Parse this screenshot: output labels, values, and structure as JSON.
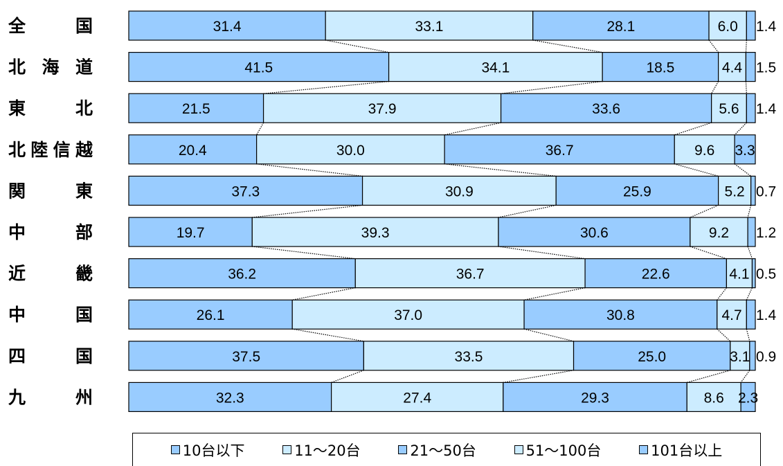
{
  "chart_data": {
    "type": "bar",
    "orientation": "horizontal",
    "stacked": "percent",
    "categories": [
      "全　　国",
      "北海道",
      "東　　北",
      "北陸信越",
      "関　　東",
      "中　　部",
      "近　　畿",
      "中　　国",
      "四　　国",
      "九　　州"
    ],
    "series": [
      {
        "name": "10台以下",
        "color": "#99CCFF",
        "values": [
          31.4,
          41.5,
          21.5,
          20.4,
          37.3,
          19.7,
          36.2,
          26.1,
          37.5,
          32.3
        ]
      },
      {
        "name": "11～20台",
        "color": "#CCECFF",
        "values": [
          33.1,
          34.1,
          37.9,
          30.0,
          30.9,
          39.3,
          36.7,
          37.0,
          33.5,
          27.4
        ]
      },
      {
        "name": "21～50台",
        "color": "#99CCFF",
        "values": [
          28.1,
          18.5,
          33.6,
          36.7,
          25.9,
          30.6,
          22.6,
          30.8,
          25.0,
          29.3
        ]
      },
      {
        "name": "51～100台",
        "color": "#CCECFF",
        "values": [
          6.0,
          4.4,
          5.6,
          9.6,
          5.2,
          9.2,
          4.1,
          4.7,
          3.1,
          8.6
        ]
      },
      {
        "name": "101台以上",
        "color": "#99CCFF",
        "values": [
          1.4,
          1.5,
          1.4,
          3.3,
          0.7,
          1.2,
          0.5,
          1.4,
          0.9,
          2.3
        ]
      }
    ],
    "value_labels": [
      [
        "31.4",
        "33.1",
        "28.1",
        "6.0",
        "1.4"
      ],
      [
        "41.5",
        "34.1",
        "18.5",
        "4.4",
        "1.5"
      ],
      [
        "21.5",
        "37.9",
        "33.6",
        "5.6",
        "1.4"
      ],
      [
        "20.4",
        "30.0",
        "36.7",
        "9.6",
        "3.3"
      ],
      [
        "37.3",
        "30.9",
        "25.9",
        "5.2",
        "0.7"
      ],
      [
        "19.7",
        "39.3",
        "30.6",
        "9.2",
        "1.2"
      ],
      [
        "36.2",
        "36.7",
        "22.6",
        "4.1",
        "0.5"
      ],
      [
        "26.1",
        "37.0",
        "30.8",
        "4.7",
        "1.4"
      ],
      [
        "37.5",
        "33.5",
        "25.0",
        "3.1",
        "0.9"
      ],
      [
        "32.3",
        "27.4",
        "29.3",
        "8.6",
        "2.3"
      ]
    ],
    "series_lines": true,
    "legend": "bottom",
    "grid": false
  }
}
